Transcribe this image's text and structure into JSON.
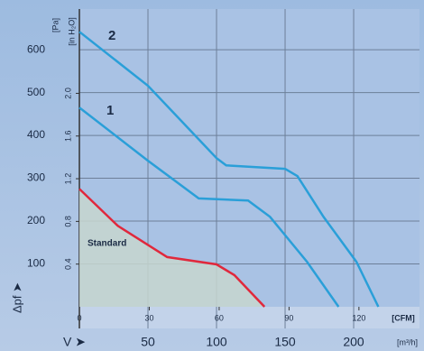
{
  "chart_data": {
    "type": "line",
    "series": [
      {
        "name": "2",
        "color": "#2a9fd8",
        "x": [
          0,
          50,
          100,
          107,
          150,
          159,
          178,
          202,
          218
        ],
        "values": [
          642,
          516,
          347,
          330,
          322,
          305,
          210,
          105,
          0
        ]
      },
      {
        "name": "1",
        "color": "#2a9fd8",
        "x": [
          0,
          50,
          87,
          123,
          139,
          166,
          189
        ],
        "values": [
          465,
          341,
          253,
          248,
          210,
          105,
          0
        ]
      },
      {
        "name": "Standard",
        "color": "#e0283c",
        "x": [
          0,
          28,
          64,
          100,
          113,
          135
        ],
        "values": [
          275,
          189,
          116,
          99,
          74,
          0
        ]
      }
    ],
    "xlim": [
      0,
      248
    ],
    "xticks": [
      50,
      100,
      150,
      200
    ],
    "xlabel": "[m³/h]",
    "xsymbol": "V ➤",
    "x2lim": [
      0,
      146
    ],
    "x2ticks": [
      0,
      30,
      60,
      90,
      120
    ],
    "x2label": "[CFM]",
    "ylim": [
      0,
      695
    ],
    "yticks": [
      100,
      200,
      300,
      400,
      500,
      600
    ],
    "ylabel": "[Pa]",
    "ysymbol": "Δpf ➤",
    "y2lim": [
      0,
      2.79
    ],
    "y2ticks": [
      0.4,
      0.8,
      1.2,
      1.6,
      {
        "value": 2,
        "label": "2.0"
      }
    ],
    "y2label": "[in H₂O]",
    "grid": true
  }
}
